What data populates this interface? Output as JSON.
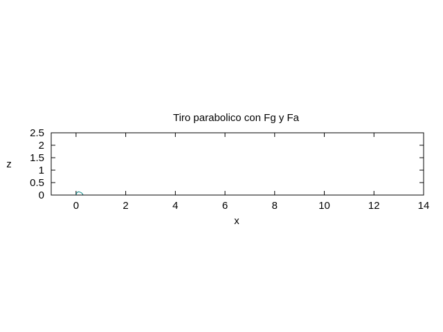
{
  "chart_data": {
    "type": "line",
    "title": "Tiro parabolico con Fg y Fa",
    "xlabel": "x",
    "ylabel": "z",
    "xlim": [
      -1,
      14
    ],
    "ylim": [
      0,
      2.5
    ],
    "xticks": [
      "0",
      "2",
      "4",
      "6",
      "8",
      "10",
      "12",
      "14"
    ],
    "yticks": [
      "0",
      "0.5",
      "1",
      "1.5",
      "2",
      "2.5"
    ],
    "grid": false,
    "series": [
      {
        "color": "#008080",
        "x": [
          0.0,
          0.02,
          0.05,
          0.1,
          0.15,
          0.2,
          0.24,
          0.27,
          0.28
        ],
        "y": [
          0.0,
          0.07,
          0.11,
          0.13,
          0.12,
          0.1,
          0.07,
          0.03,
          0.0
        ]
      }
    ]
  }
}
